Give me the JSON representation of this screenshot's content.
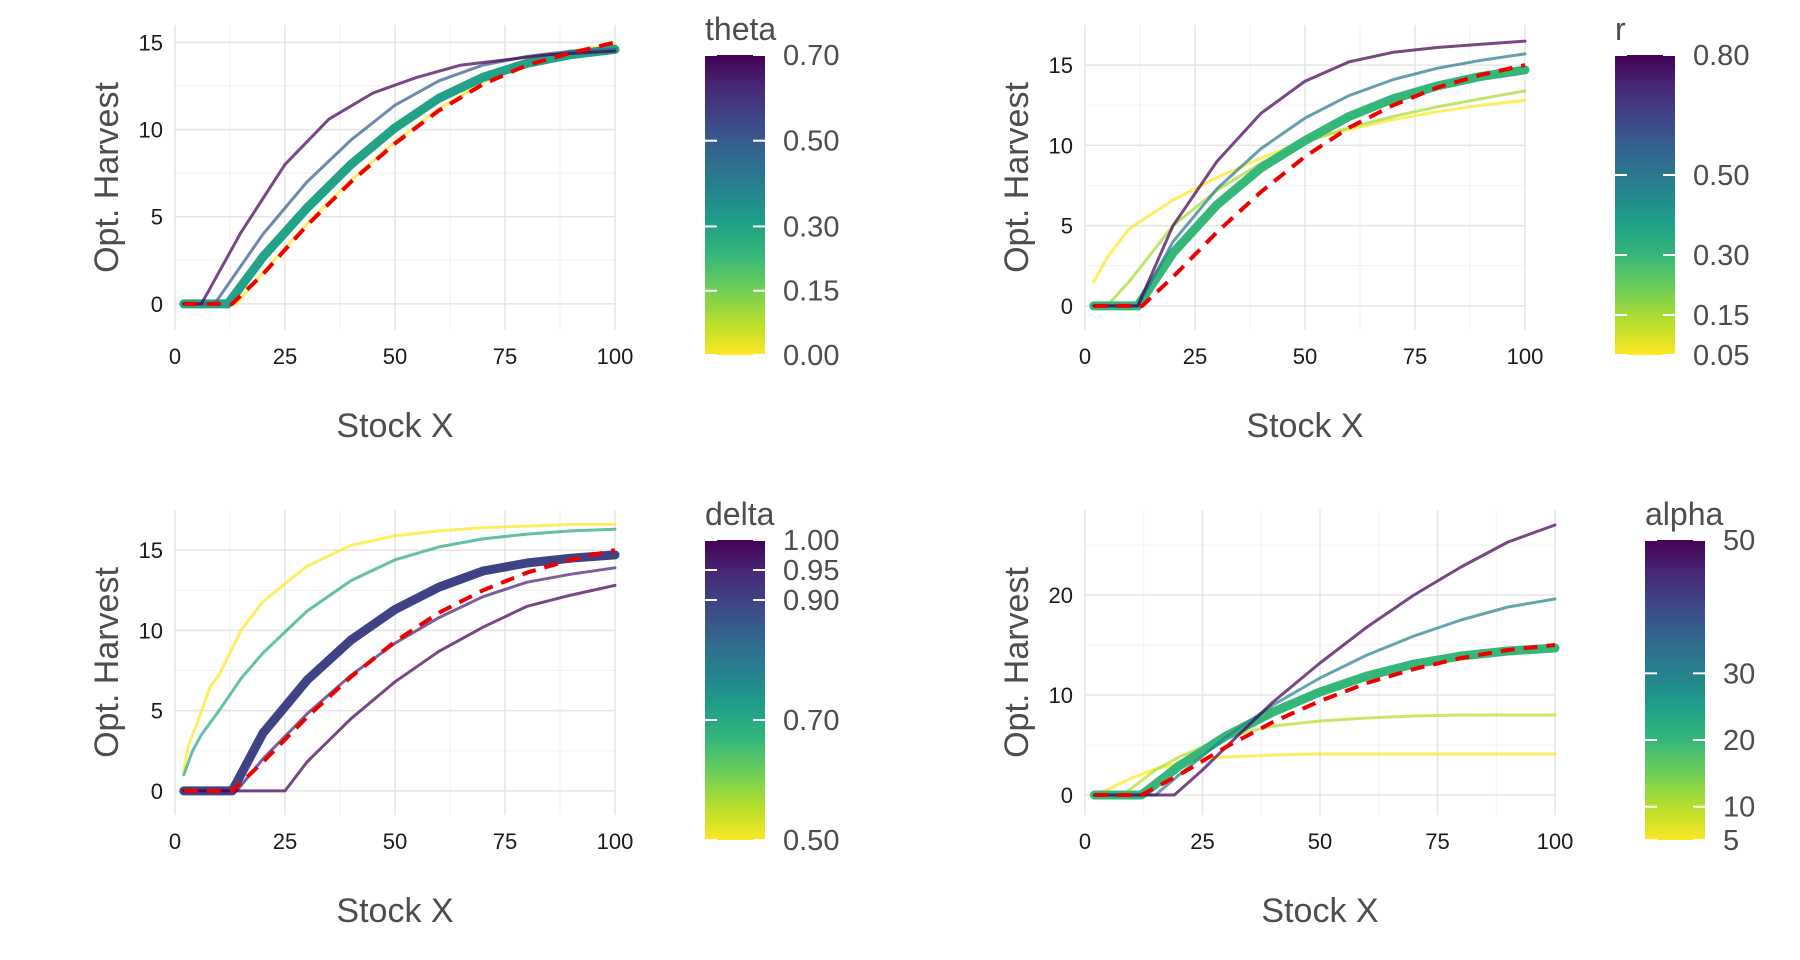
{
  "palette": {
    "viridis": [
      "#fde725",
      "#b5de2b",
      "#6ece58",
      "#35b779",
      "#1f9e89",
      "#26828e",
      "#31688e",
      "#3e4989",
      "#482878",
      "#440154"
    ],
    "reference_line": "#ee0000",
    "grid": "#e5e5e5"
  },
  "chart_data": [
    {
      "type": "line",
      "xlabel": "Stock X",
      "ylabel": "Opt. Harvest",
      "xlim": [
        0,
        100
      ],
      "ylim": [
        -1.5,
        16
      ],
      "xticks": [
        0,
        25,
        50,
        75,
        100
      ],
      "yticks": [
        0,
        5,
        10,
        15
      ],
      "grid": true,
      "legend": {
        "position": "right",
        "title": "theta",
        "range": [
          0,
          0.7
        ],
        "labels": [
          "0.70",
          "0.50",
          "0.30",
          "0.15",
          "0.00"
        ],
        "label_values": [
          0.7,
          0.5,
          0.3,
          0.15,
          0.0
        ]
      },
      "series": [
        {
          "value": 0.0,
          "width": 3,
          "x": [
            2,
            14,
            20,
            30,
            40,
            50,
            60,
            70,
            80,
            90,
            100
          ],
          "y": [
            0,
            0,
            1.8,
            4.6,
            7.1,
            9.3,
            11.2,
            12.7,
            13.8,
            14.5,
            14.9
          ]
        },
        {
          "value": 0.3,
          "width": 9,
          "x": [
            2,
            12,
            20,
            30,
            40,
            50,
            60,
            70,
            80,
            90,
            100
          ],
          "y": [
            0,
            0,
            2.7,
            5.5,
            8.0,
            10.1,
            11.8,
            13.0,
            13.8,
            14.3,
            14.6
          ]
        },
        {
          "value": 0.5,
          "width": 3,
          "x": [
            2,
            9,
            20,
            30,
            40,
            50,
            60,
            70,
            80,
            90,
            100
          ],
          "y": [
            0,
            0,
            4.0,
            7.0,
            9.4,
            11.4,
            12.8,
            13.7,
            14.2,
            14.5,
            14.6
          ]
        },
        {
          "value": 0.7,
          "width": 3,
          "x": [
            2,
            6,
            15,
            25,
            35,
            45,
            55,
            65,
            75,
            85,
            100
          ],
          "y": [
            0,
            0,
            4.1,
            8.0,
            10.6,
            12.1,
            13.0,
            13.7,
            14.0,
            14.3,
            14.5
          ]
        }
      ],
      "reference": {
        "x": [
          2,
          13,
          20,
          30,
          40,
          50,
          60,
          70,
          80,
          90,
          100
        ],
        "y": [
          0,
          0,
          1.7,
          4.5,
          7.0,
          9.2,
          11.1,
          12.6,
          13.7,
          14.4,
          15.0
        ]
      }
    },
    {
      "type": "line",
      "xlabel": "Stock X",
      "ylabel": "Opt. Harvest",
      "xlim": [
        0,
        100
      ],
      "ylim": [
        -1.5,
        17.5
      ],
      "xticks": [
        0,
        25,
        50,
        75,
        100
      ],
      "yticks": [
        0,
        5,
        10,
        15
      ],
      "grid": true,
      "legend": {
        "position": "right",
        "title": "r",
        "range": [
          0.05,
          0.8
        ],
        "labels": [
          "0.80",
          "0.50",
          "0.30",
          "0.15",
          "0.05"
        ],
        "label_values": [
          0.8,
          0.5,
          0.3,
          0.15,
          0.05
        ]
      },
      "series": [
        {
          "value": 0.05,
          "width": 3,
          "x": [
            2,
            3,
            5,
            10,
            20,
            30,
            40,
            50,
            60,
            70,
            80,
            90,
            100
          ],
          "y": [
            1.5,
            2.0,
            3.0,
            4.8,
            6.6,
            8.0,
            9.2,
            10.3,
            11.0,
            11.6,
            12.1,
            12.5,
            12.8
          ]
        },
        {
          "value": 0.15,
          "width": 3,
          "x": [
            2,
            5,
            10,
            20,
            30,
            40,
            50,
            60,
            70,
            80,
            90,
            100
          ],
          "y": [
            0,
            0,
            1.5,
            5.0,
            7.2,
            8.9,
            10.2,
            11.1,
            11.8,
            12.4,
            12.9,
            13.4
          ]
        },
        {
          "value": 0.3,
          "width": 9,
          "x": [
            2,
            12,
            20,
            30,
            40,
            50,
            60,
            70,
            80,
            90,
            100
          ],
          "y": [
            0,
            0,
            3.3,
            6.3,
            8.6,
            10.3,
            11.8,
            12.9,
            13.7,
            14.3,
            14.7
          ]
        },
        {
          "value": 0.5,
          "width": 3,
          "x": [
            2,
            12,
            20,
            30,
            40,
            50,
            60,
            70,
            80,
            90,
            100
          ],
          "y": [
            0,
            0,
            4.0,
            7.3,
            9.8,
            11.7,
            13.1,
            14.1,
            14.8,
            15.3,
            15.7
          ]
        },
        {
          "value": 0.8,
          "width": 3,
          "x": [
            2,
            12,
            20,
            30,
            40,
            50,
            60,
            70,
            80,
            90,
            100
          ],
          "y": [
            0,
            0,
            5.0,
            9.0,
            12.0,
            14.0,
            15.2,
            15.8,
            16.1,
            16.3,
            16.5
          ]
        }
      ],
      "reference": {
        "x": [
          2,
          13,
          20,
          30,
          40,
          50,
          60,
          70,
          80,
          90,
          100
        ],
        "y": [
          0,
          0,
          1.8,
          4.6,
          7.1,
          9.3,
          11.1,
          12.5,
          13.6,
          14.4,
          15.0
        ]
      }
    },
    {
      "type": "line",
      "xlabel": "Stock X",
      "ylabel": "Opt. Harvest",
      "xlim": [
        0,
        100
      ],
      "ylim": [
        -1.5,
        17.5
      ],
      "xticks": [
        0,
        25,
        50,
        75,
        100
      ],
      "yticks": [
        0,
        5,
        10,
        15
      ],
      "grid": true,
      "legend": {
        "position": "right",
        "title": "delta",
        "range": [
          0.5,
          1.0
        ],
        "labels": [
          "1.00",
          "0.95",
          "0.90",
          "0.70",
          "0.50"
        ],
        "label_values": [
          1.0,
          0.95,
          0.9,
          0.7,
          0.5
        ]
      },
      "series": [
        {
          "value": 0.5,
          "width": 3,
          "x": [
            2,
            3,
            5,
            8,
            10,
            15,
            20,
            30,
            40,
            50,
            60,
            70,
            80,
            90,
            100
          ],
          "y": [
            1.2,
            2.8,
            4.2,
            6.5,
            7.2,
            10.0,
            11.8,
            14.0,
            15.3,
            15.9,
            16.2,
            16.4,
            16.5,
            16.6,
            16.6
          ]
        },
        {
          "value": 0.7,
          "width": 3,
          "x": [
            2,
            4,
            6,
            10,
            15,
            20,
            30,
            40,
            50,
            60,
            70,
            80,
            90,
            100
          ],
          "y": [
            1.0,
            2.5,
            3.5,
            5.0,
            7.0,
            8.6,
            11.2,
            13.1,
            14.4,
            15.2,
            15.7,
            16.0,
            16.2,
            16.3
          ]
        },
        {
          "value": 0.9,
          "width": 9,
          "x": [
            2,
            13,
            20,
            30,
            40,
            50,
            60,
            70,
            80,
            90,
            100
          ],
          "y": [
            0,
            0,
            3.6,
            6.9,
            9.4,
            11.3,
            12.7,
            13.7,
            14.2,
            14.5,
            14.7
          ]
        },
        {
          "value": 0.95,
          "width": 3,
          "x": [
            2,
            14,
            20,
            30,
            40,
            50,
            60,
            70,
            80,
            90,
            100
          ],
          "y": [
            0,
            0,
            2.0,
            4.8,
            7.2,
            9.2,
            10.8,
            12.1,
            13.0,
            13.5,
            13.9
          ]
        },
        {
          "value": 1.0,
          "width": 3,
          "x": [
            2,
            25,
            30,
            40,
            50,
            60,
            70,
            80,
            90,
            100
          ],
          "y": [
            0,
            0,
            1.8,
            4.5,
            6.8,
            8.7,
            10.2,
            11.5,
            12.2,
            12.8
          ]
        }
      ],
      "reference": {
        "x": [
          2,
          13,
          20,
          30,
          40,
          50,
          60,
          70,
          80,
          90,
          100
        ],
        "y": [
          0,
          0,
          1.8,
          4.6,
          7.1,
          9.3,
          11.1,
          12.5,
          13.6,
          14.4,
          15.0
        ]
      }
    },
    {
      "type": "line",
      "xlabel": "Stock X",
      "ylabel": "Opt. Harvest",
      "xlim": [
        0,
        100
      ],
      "ylim": [
        -2,
        28.5
      ],
      "xticks": [
        0,
        25,
        50,
        75,
        100
      ],
      "yticks": [
        0,
        10,
        20
      ],
      "grid": true,
      "legend": {
        "position": "right",
        "title": "alpha",
        "range": [
          5,
          50
        ],
        "labels": [
          "50",
          "30",
          "20",
          "10",
          "5"
        ],
        "label_values": [
          50,
          30,
          20,
          10,
          5
        ]
      },
      "series": [
        {
          "value": 5,
          "width": 3,
          "x": [
            2,
            5,
            10,
            15,
            20,
            25,
            30,
            40,
            50,
            60,
            70,
            80,
            90,
            100
          ],
          "y": [
            0,
            0.6,
            1.7,
            2.6,
            3.2,
            3.6,
            3.8,
            4.0,
            4.1,
            4.1,
            4.1,
            4.1,
            4.1,
            4.1
          ]
        },
        {
          "value": 10,
          "width": 3,
          "x": [
            2,
            8,
            15,
            20,
            30,
            40,
            50,
            60,
            70,
            80,
            90,
            100
          ],
          "y": [
            0,
            0,
            2.5,
            3.8,
            5.8,
            6.9,
            7.4,
            7.7,
            7.9,
            8.0,
            8.0,
            8.0
          ]
        },
        {
          "value": 20,
          "width": 9,
          "x": [
            2,
            12,
            20,
            30,
            40,
            50,
            60,
            70,
            80,
            90,
            100
          ],
          "y": [
            0,
            0,
            2.9,
            5.9,
            8.3,
            10.3,
            11.9,
            13.1,
            13.9,
            14.4,
            14.7
          ]
        },
        {
          "value": 30,
          "width": 3,
          "x": [
            2,
            15,
            20,
            30,
            40,
            50,
            60,
            70,
            80,
            90,
            100
          ],
          "y": [
            0,
            0,
            2.0,
            5.8,
            9.0,
            11.7,
            14.0,
            15.9,
            17.5,
            18.8,
            19.6
          ]
        },
        {
          "value": 50,
          "width": 3,
          "x": [
            2,
            19,
            25,
            30,
            40,
            50,
            60,
            70,
            80,
            90,
            100
          ],
          "y": [
            0,
            0,
            2.5,
            4.8,
            9.3,
            13.2,
            16.8,
            20.0,
            22.8,
            25.3,
            27.0
          ]
        }
      ],
      "reference": {
        "x": [
          2,
          12,
          20,
          30,
          40,
          50,
          60,
          70,
          80,
          90,
          100
        ],
        "y": [
          0,
          0,
          2.0,
          4.8,
          7.3,
          9.4,
          11.2,
          12.6,
          13.7,
          14.5,
          15.0
        ]
      }
    }
  ]
}
